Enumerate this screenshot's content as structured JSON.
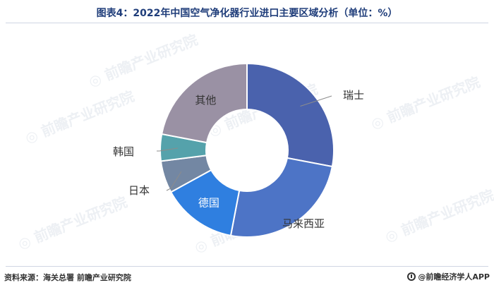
{
  "title": "图表4：2022年中国空气净化器行业进口主要区域分析（单位：%）",
  "source": "资料来源：海关总署 前瞻产业研究院",
  "brand": "@前瞻经济学人APP",
  "watermark": "前瞻产业研究院",
  "chart_data": {
    "type": "pie",
    "donut": true,
    "title": "图表4：2022年中国空气净化器行业进口主要区域分析（单位：%）",
    "slices": [
      {
        "label": "瑞士",
        "value": 28,
        "color": "#4a62ad"
      },
      {
        "label": "马来西亚",
        "value": 25,
        "color": "#4d74c6"
      },
      {
        "label": "德国",
        "value": 14,
        "color": "#2f7fe0"
      },
      {
        "label": "日本",
        "value": 6,
        "color": "#7387a3"
      },
      {
        "label": "韩国",
        "value": 5,
        "color": "#55a2ab"
      },
      {
        "label": "其他",
        "value": 22,
        "color": "#9a91a4"
      }
    ]
  }
}
